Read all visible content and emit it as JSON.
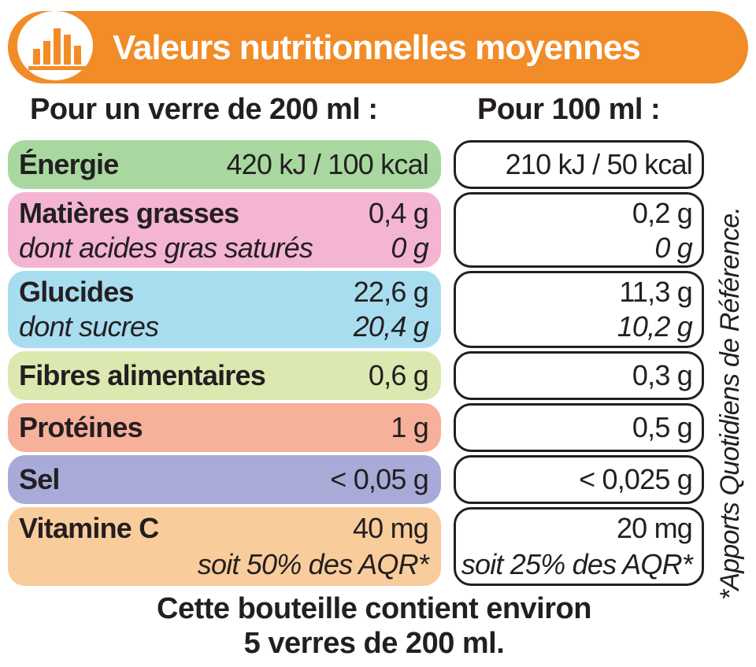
{
  "title": "Valeurs nutritionnelles moyennes",
  "columns": {
    "per_glass": "Pour un verre de 200 ml :",
    "per_100ml": "Pour 100 ml :"
  },
  "rows": [
    {
      "color": "#a8d8a0",
      "label": "Énergie",
      "glass": "420 kJ / 100 kcal",
      "per100": "210 kJ / 50 kcal"
    },
    {
      "color": "#f4b4d4",
      "label": "Matières grasses",
      "glass": "0,4 g",
      "per100": "0,2 g",
      "sub_label": "dont acides gras saturés",
      "sub_glass": "0 g",
      "sub_per100": "0 g"
    },
    {
      "color": "#a8ddf0",
      "label": "Glucides",
      "glass": "22,6 g",
      "per100": "11,3 g",
      "sub_label": "dont sucres",
      "sub_glass": "20,4 g",
      "sub_per100": "10,2 g"
    },
    {
      "color": "#dbe8b0",
      "label": "Fibres alimentaires",
      "glass": "0,6 g",
      "per100": "0,3 g"
    },
    {
      "color": "#f7b09a",
      "label": "Protéines",
      "glass": "1 g",
      "per100": "0,5 g"
    },
    {
      "color": "#a8abd8",
      "label": "Sel",
      "glass": "< 0,05 g",
      "per100": "< 0,025 g"
    },
    {
      "color": "#f9cc9c",
      "label": "Vitamine C",
      "glass": "40 mg",
      "per100": "20 mg",
      "sub_glass": "soit 50% des AQR*",
      "sub_per100": "soit 25% des AQR*"
    }
  ],
  "footnote": "*Apports Quotidiens de Référence.",
  "footer": {
    "line1": "Cette bouteille contient environ",
    "line2": "5 verres de 200 ml."
  },
  "colors": {
    "banner": "#f28c28",
    "text": "#231f20"
  },
  "icons": {
    "logo": "bar-chart-icon"
  }
}
